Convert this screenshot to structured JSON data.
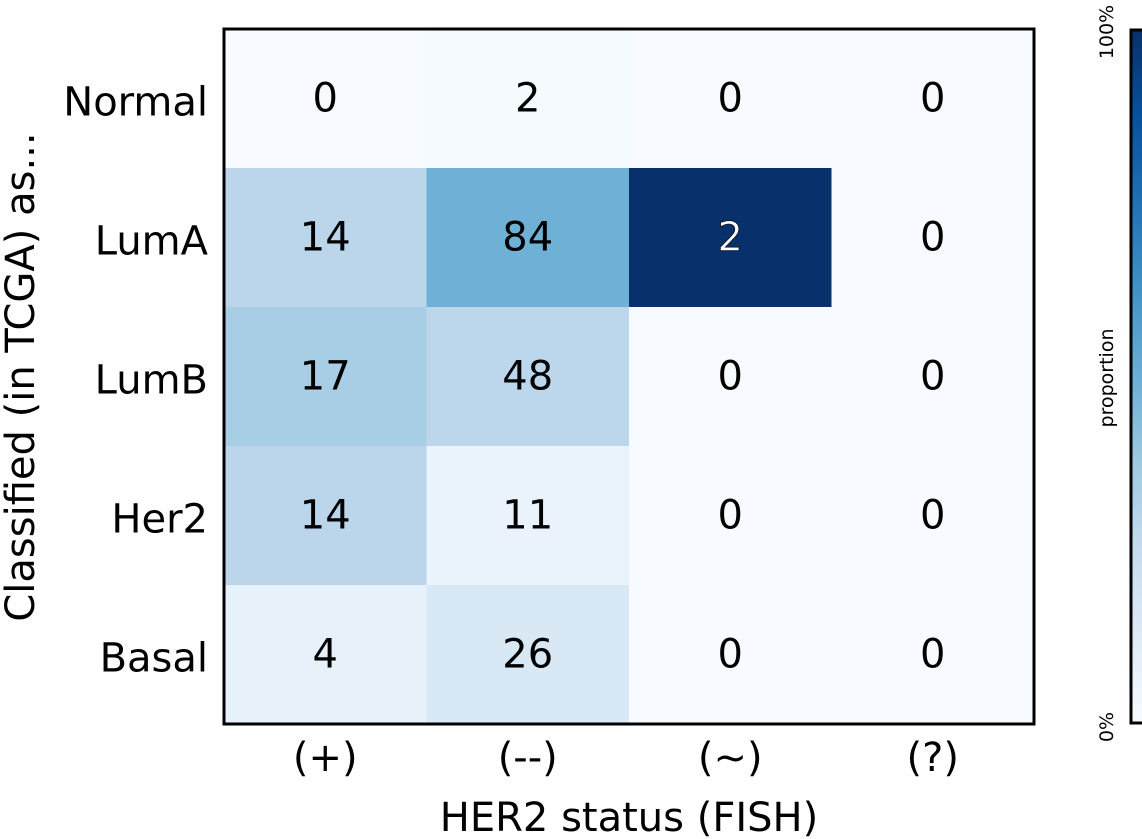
{
  "chart_data": {
    "type": "heatmap",
    "xlabel": "HER2 status (FISH)",
    "ylabel": "Classified (in TCGA) as...",
    "x_categories": [
      "(+)",
      "(--)",
      "(~)",
      "(?)"
    ],
    "y_categories": [
      "Normal",
      "LumA",
      "LumB",
      "Her2",
      "Basal"
    ],
    "values": [
      [
        0,
        2,
        0,
        0
      ],
      [
        14,
        84,
        2,
        0
      ],
      [
        17,
        48,
        0,
        0
      ],
      [
        14,
        11,
        0,
        0
      ],
      [
        4,
        26,
        0,
        0
      ]
    ],
    "colormap": "Blues",
    "color_value": "column proportion",
    "colorbar": {
      "label": "proportion",
      "min_label": "0%",
      "max_label": "100%"
    }
  }
}
